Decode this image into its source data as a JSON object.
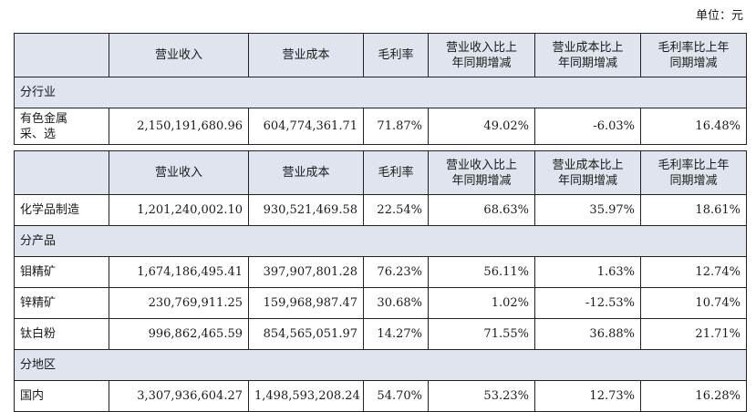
{
  "unit_label": "单位：元",
  "headers": {
    "c1": "营业收入",
    "c2": "营业成本",
    "c3": "毛利率",
    "c4_l1": "营业收入比上",
    "c4_l2": "年同期增减",
    "c5_l1": "营业成本比上",
    "c5_l2": "年同期增减",
    "c6_l1": "毛利率比上年",
    "c6_l2": "同期增减"
  },
  "section1": {
    "title": "分行业",
    "row": {
      "name_l1": "有色金属",
      "name_l2": "采、选",
      "revenue": "2,150,191,680.96",
      "cost": "604,774,361.71",
      "margin": "71.87%",
      "rev_change": "49.02%",
      "cost_change": "-6.03%",
      "margin_change": "16.48%"
    }
  },
  "section2": {
    "row_chem": {
      "name": "化学品制造",
      "revenue": "1,201,240,002.10",
      "cost": "930,521,469.58",
      "margin": "22.54%",
      "rev_change": "68.63%",
      "cost_change": "35.97%",
      "margin_change": "18.61%"
    },
    "product_title": "分产品",
    "products": [
      {
        "name": "钼精矿",
        "revenue": "1,674,186,495.41",
        "cost": "397,907,801.28",
        "margin": "76.23%",
        "rev_change": "56.11%",
        "cost_change": "1.63%",
        "margin_change": "12.74%"
      },
      {
        "name": "锌精矿",
        "revenue": "230,769,911.25",
        "cost": "159,968,987.47",
        "margin": "30.68%",
        "rev_change": "1.02%",
        "cost_change": "-12.53%",
        "margin_change": "10.74%"
      },
      {
        "name": "钛白粉",
        "revenue": "996,862,465.59",
        "cost": "854,565,051.97",
        "margin": "14.27%",
        "rev_change": "71.55%",
        "cost_change": "36.88%",
        "margin_change": "21.71%"
      }
    ],
    "region_title": "分地区",
    "region": {
      "name": "国内",
      "revenue": "3,307,936,604.27",
      "cost": "1,498,593,208.24",
      "margin": "54.70%",
      "rev_change": "53.23%",
      "cost_change": "12.73%",
      "margin_change": "16.28%"
    }
  }
}
